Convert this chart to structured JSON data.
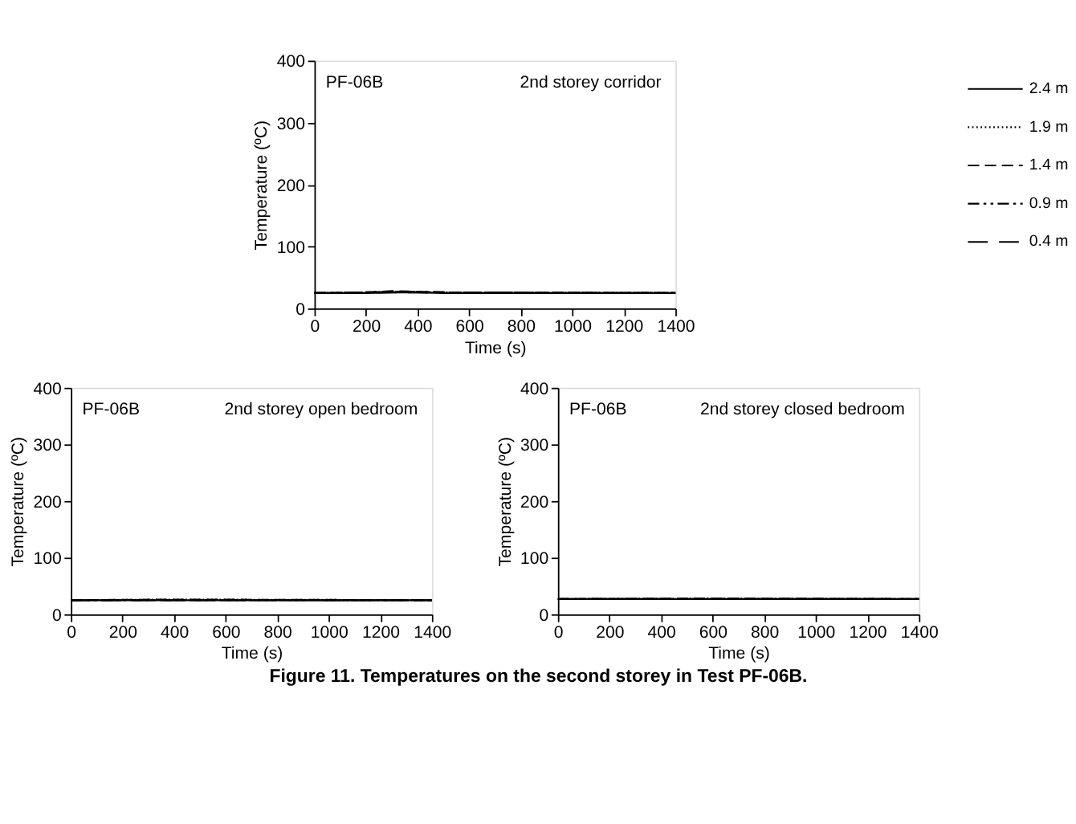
{
  "chart_data": [
    {
      "type": "line",
      "xlabel": "Time (s)",
      "ylabel": "Temperature (ºC)",
      "xlim": [
        0,
        1400
      ],
      "xticks": [
        0,
        200,
        400,
        600,
        800,
        1000,
        1200,
        1400
      ],
      "ylim": [
        0,
        400
      ],
      "yticks": [
        0,
        100,
        200,
        300,
        400
      ],
      "grid": false,
      "legend": "right",
      "annotations": [
        "PF-06B",
        "2nd storey corridor"
      ],
      "series": [
        {
          "name": "2.4 m",
          "color": "#000000",
          "line_style": "solid",
          "x": [
            0,
            200,
            300,
            400,
            500,
            1400
          ],
          "values": [
            25,
            25,
            26,
            26,
            25,
            25
          ]
        },
        {
          "name": "1.9 m",
          "color": "#000000",
          "line_style": "dotted",
          "x": [
            0,
            200,
            300,
            400,
            500,
            1400
          ],
          "values": [
            25,
            26,
            27,
            27,
            26,
            25
          ]
        },
        {
          "name": "1.4 m",
          "color": "#000000",
          "line_style": "dashed",
          "x": [
            0,
            200,
            300,
            400,
            500,
            1400
          ],
          "values": [
            25,
            26,
            28,
            27,
            26,
            25
          ]
        },
        {
          "name": "0.9 m",
          "color": "#000000",
          "line_style": "dashdot",
          "x": [
            0,
            200,
            300,
            400,
            500,
            1400
          ],
          "values": [
            25,
            26,
            27,
            27,
            26,
            25
          ]
        },
        {
          "name": "0.4 m",
          "color": "#000000",
          "line_style": "longdash",
          "x": [
            0,
            200,
            300,
            400,
            500,
            1400
          ],
          "values": [
            25,
            25,
            26,
            26,
            25,
            25
          ]
        }
      ]
    },
    {
      "type": "line",
      "xlabel": "Time (s)",
      "ylabel": "Temperature (ºC)",
      "xlim": [
        0,
        1400
      ],
      "xticks": [
        0,
        200,
        400,
        600,
        800,
        1000,
        1200,
        1400
      ],
      "ylim": [
        0,
        400
      ],
      "yticks": [
        0,
        100,
        200,
        300,
        400
      ],
      "grid": false,
      "annotations": [
        "PF-06B",
        "2nd storey open bedroom"
      ],
      "series": [
        {
          "color": "#000000",
          "line_style": "solid",
          "x": [
            0,
            1400
          ],
          "values": [
            25,
            25
          ]
        },
        {
          "color": "#000000",
          "line_style": "dotted",
          "x": [
            0,
            400,
            1400
          ],
          "values": [
            25,
            26,
            25
          ]
        },
        {
          "color": "#000000",
          "line_style": "dashed",
          "x": [
            0,
            400,
            1400
          ],
          "values": [
            25,
            26,
            25
          ]
        },
        {
          "color": "#000000",
          "line_style": "dashdot",
          "x": [
            0,
            1400
          ],
          "values": [
            25,
            25
          ]
        },
        {
          "color": "#000000",
          "line_style": "longdash",
          "x": [
            0,
            1400
          ],
          "values": [
            25,
            25
          ]
        }
      ]
    },
    {
      "type": "line",
      "xlabel": "Time (s)",
      "ylabel": "Temperature (ºC)",
      "xlim": [
        0,
        1400
      ],
      "xticks": [
        0,
        200,
        400,
        600,
        800,
        1000,
        1200,
        1400
      ],
      "ylim": [
        0,
        400
      ],
      "yticks": [
        0,
        100,
        200,
        300,
        400
      ],
      "grid": false,
      "annotations": [
        "PF-06B",
        "2nd storey closed bedroom",
        "Figure 11.  Temperatures on the second storey in Test PF-06B."
      ],
      "series": [
        {
          "color": "#000000",
          "line_style": "solid",
          "x": [
            0,
            1400
          ],
          "values": [
            27,
            27
          ]
        },
        {
          "color": "#000000",
          "line_style": "dotted",
          "x": [
            0,
            600,
            1400
          ],
          "values": [
            27,
            28,
            27
          ]
        },
        {
          "color": "#000000",
          "line_style": "dashed",
          "x": [
            0,
            600,
            1400
          ],
          "values": [
            27,
            28,
            27
          ]
        },
        {
          "color": "#000000",
          "line_style": "dashdot",
          "x": [
            0,
            1400
          ],
          "values": [
            27,
            27
          ]
        },
        {
          "color": "#000000",
          "line_style": "longdash",
          "x": [
            0,
            1400
          ],
          "values": [
            27,
            27
          ]
        }
      ]
    }
  ]
}
